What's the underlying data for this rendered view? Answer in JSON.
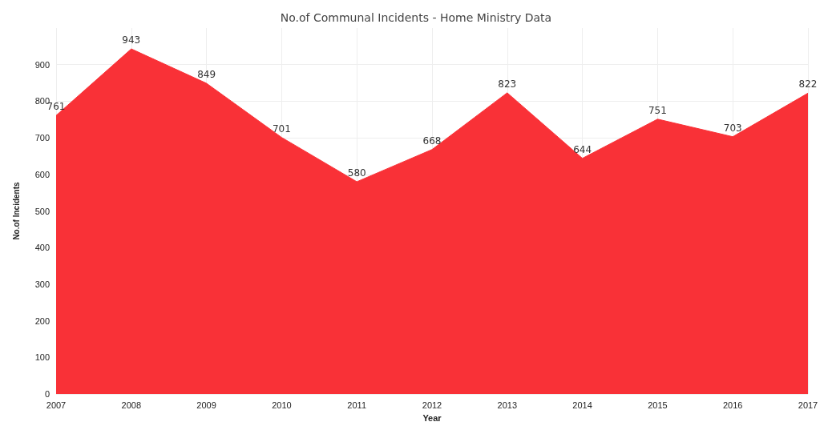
{
  "chart_data": {
    "type": "area",
    "title": "No.of Communal Incidents - Home Ministry Data",
    "xlabel": "Year",
    "ylabel": "No.of Incidents",
    "categories": [
      "2007",
      "2008",
      "2009",
      "2010",
      "2011",
      "2012",
      "2013",
      "2014",
      "2015",
      "2016",
      "2017"
    ],
    "series": [
      {
        "color": "#f93137",
        "values": [
          761,
          943,
          849,
          701,
          580,
          668,
          823,
          644,
          751,
          703,
          822
        ]
      }
    ],
    "ylim": [
      0,
      1000
    ],
    "yticks": [
      0,
      100,
      200,
      300,
      400,
      500,
      600,
      700,
      800,
      900
    ],
    "grid": true,
    "data_labels": true
  }
}
